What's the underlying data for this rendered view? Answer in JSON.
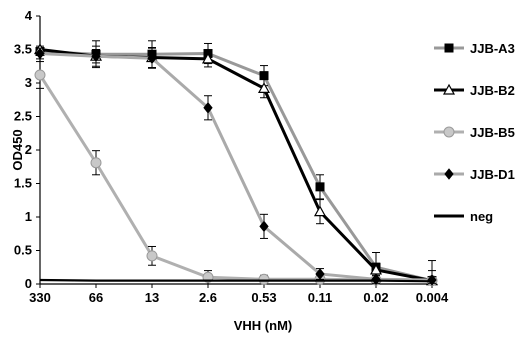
{
  "chart_data": {
    "type": "line",
    "xlabel": "VHH (nM)",
    "ylabel": "OD450",
    "categories": [
      "330",
      "66",
      "13",
      "2.6",
      "0.53",
      "0.11",
      "0.02",
      "0.004"
    ],
    "y_ticks": [
      "0",
      "0.5",
      "1",
      "1.5",
      "2",
      "2.5",
      "3",
      "3.5",
      "4"
    ],
    "ylim": [
      0,
      4
    ],
    "grid": false,
    "legend_position": "right",
    "series": [
      {
        "name": "JJB-A3",
        "color": "#999999",
        "marker": "square",
        "marker_color": "#000000",
        "values": [
          3.47,
          3.43,
          3.43,
          3.44,
          3.11,
          1.45,
          0.25,
          0.05
        ],
        "errors": [
          0.05,
          0.2,
          0.2,
          0.15,
          0.15,
          0.18,
          0.22,
          0.3
        ]
      },
      {
        "name": "JJB-B2",
        "color": "#000000",
        "marker": "triangle-open",
        "marker_color": "#000000",
        "values": [
          3.5,
          3.4,
          3.38,
          3.36,
          2.92,
          1.08,
          0.21,
          0.05
        ],
        "errors": [
          0.05,
          0.15,
          0.15,
          0.12,
          0.14,
          0.18,
          0.1,
          0.15
        ]
      },
      {
        "name": "JJB-B5",
        "color": "#b0b0b0",
        "marker": "circle",
        "marker_color": "#c8c8c8",
        "values": [
          3.12,
          1.81,
          0.42,
          0.1,
          0.07,
          0.07,
          0.06,
          0.05
        ],
        "errors": [
          0.2,
          0.18,
          0.14,
          0.1,
          0.06,
          0.06,
          0.06,
          0.05
        ]
      },
      {
        "name": "JJB-D1",
        "color": "#aaaaaa",
        "marker": "diamond",
        "marker_color": "#000000",
        "values": [
          3.44,
          3.4,
          3.37,
          2.63,
          0.86,
          0.15,
          0.07,
          0.06
        ],
        "errors": [
          0.08,
          0.1,
          0.15,
          0.18,
          0.18,
          0.08,
          0.06,
          0.05
        ]
      },
      {
        "name": "neg",
        "color": "#000000",
        "marker": "none",
        "marker_color": "#000000",
        "values": [
          0.06,
          0.05,
          0.05,
          0.05,
          0.05,
          0.05,
          0.05,
          0.04
        ],
        "errors": []
      }
    ]
  }
}
